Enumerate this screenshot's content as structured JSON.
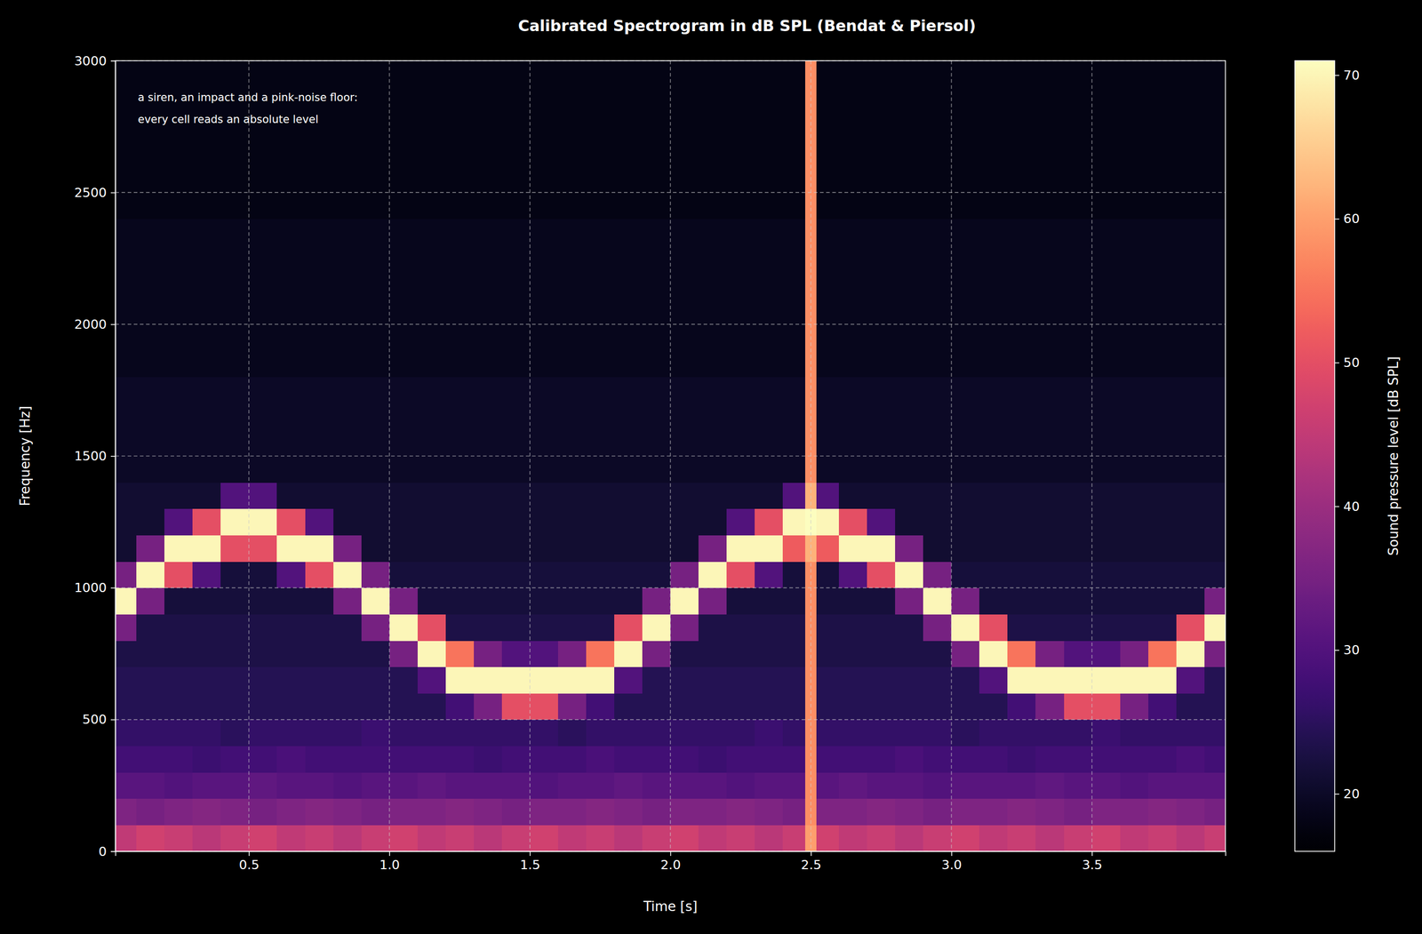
{
  "chart_data": {
    "type": "heatmap",
    "title": "Calibrated Spectrogram in dB SPL (Bendat & Piersol)",
    "annotation": [
      "a siren, an impact and a pink-noise floor:",
      "every cell reads an absolute level"
    ],
    "xlabel": "Time [s]",
    "ylabel": "Frequency [Hz]",
    "color": "magma",
    "grid": true,
    "xlim": [
      0.025,
      3.975
    ],
    "ylim": [
      0,
      3000
    ],
    "xticks": [
      0.5,
      {
        "value": 1,
        "label": "1.0"
      },
      1.5,
      {
        "value": 2,
        "label": "2.0"
      },
      2.5,
      {
        "value": 3,
        "label": "3.0"
      },
      3.5
    ],
    "yticks": [
      0,
      500,
      1000,
      1500,
      2000,
      2500,
      3000
    ],
    "colorbar": {
      "label": "Sound pressure level [dB SPL]",
      "range": [
        16,
        71
      ],
      "ticks": [
        20,
        30,
        40,
        50,
        60,
        70
      ]
    },
    "x_edges": [
      0.025,
      0.1,
      0.2,
      0.3,
      0.4,
      0.5,
      0.6,
      0.7,
      0.8,
      0.9,
      1.0,
      1.1,
      1.2,
      1.3,
      1.4,
      1.5,
      1.6,
      1.7,
      1.8,
      1.9,
      2.0,
      2.1,
      2.2,
      2.3,
      2.4,
      2.48,
      2.52,
      2.6,
      2.7,
      2.8,
      2.9,
      3.0,
      3.1,
      3.2,
      3.3,
      3.4,
      3.5,
      3.6,
      3.7,
      3.8,
      3.9,
      3.975
    ],
    "y_edges": [
      0,
      100,
      200,
      300,
      400,
      500,
      600,
      700,
      800,
      900,
      1000,
      1100,
      1200,
      1300,
      1400,
      1500,
      1600,
      1700,
      1800,
      1900,
      2000,
      2100,
      2200,
      2300,
      2400,
      2500,
      2600,
      2700,
      2800,
      2900,
      3000
    ],
    "levels": [
      [
        45,
        36,
        31,
        28,
        26,
        24,
        24,
        23,
        35,
        70,
        35,
        21,
        21,
        21,
        20,
        20,
        20,
        20,
        19,
        19,
        19,
        19,
        19,
        19,
        18,
        18,
        18,
        18,
        18,
        18
      ],
      [
        47,
        35,
        31,
        28,
        26,
        24,
        24,
        23,
        23,
        35,
        70,
        35,
        21,
        21,
        20,
        20,
        20,
        20,
        19,
        19,
        19,
        19,
        19,
        19,
        18,
        18,
        18,
        18,
        18,
        18
      ],
      [
        46,
        36,
        30,
        28,
        26,
        24,
        24,
        23,
        23,
        22,
        50,
        70,
        30,
        21,
        20,
        20,
        20,
        20,
        19,
        19,
        19,
        19,
        19,
        19,
        18,
        18,
        18,
        18,
        18,
        18
      ],
      [
        44,
        37,
        31,
        27,
        26,
        24,
        24,
        23,
        23,
        22,
        30,
        70,
        50,
        21,
        20,
        20,
        20,
        20,
        19,
        19,
        19,
        19,
        19,
        19,
        18,
        18,
        18,
        18,
        18,
        18
      ],
      [
        46,
        36,
        31,
        28,
        25,
        24,
        24,
        23,
        23,
        22,
        22,
        50,
        70,
        30,
        20,
        20,
        20,
        20,
        19,
        19,
        19,
        19,
        19,
        19,
        18,
        18,
        18,
        18,
        18,
        18
      ],
      [
        47,
        35,
        32,
        28,
        26,
        24,
        24,
        23,
        23,
        22,
        22,
        50,
        70,
        30,
        20,
        20,
        20,
        20,
        19,
        19,
        19,
        19,
        19,
        19,
        18,
        18,
        18,
        18,
        18,
        18
      ],
      [
        45,
        36,
        31,
        29,
        26,
        24,
        24,
        23,
        23,
        22,
        30,
        70,
        50,
        21,
        20,
        20,
        20,
        20,
        19,
        19,
        19,
        19,
        19,
        19,
        18,
        18,
        18,
        18,
        18,
        18
      ],
      [
        46,
        37,
        31,
        28,
        26,
        24,
        24,
        23,
        23,
        22,
        50,
        70,
        30,
        21,
        20,
        20,
        20,
        20,
        19,
        19,
        19,
        19,
        19,
        19,
        18,
        18,
        18,
        18,
        18,
        18
      ],
      [
        44,
        36,
        30,
        28,
        26,
        24,
        24,
        23,
        23,
        35,
        70,
        35,
        21,
        21,
        20,
        20,
        20,
        20,
        19,
        19,
        19,
        19,
        19,
        19,
        18,
        18,
        18,
        18,
        18,
        18
      ],
      [
        46,
        35,
        31,
        28,
        27,
        24,
        24,
        23,
        35,
        70,
        35,
        21,
        21,
        21,
        20,
        20,
        20,
        20,
        19,
        19,
        19,
        19,
        19,
        19,
        18,
        18,
        18,
        18,
        18,
        18
      ],
      [
        47,
        36,
        31,
        28,
        26,
        24,
        24,
        35,
        70,
        35,
        22,
        21,
        21,
        21,
        20,
        20,
        20,
        20,
        19,
        19,
        19,
        19,
        19,
        19,
        18,
        18,
        18,
        18,
        18,
        18
      ],
      [
        45,
        36,
        32,
        28,
        26,
        24,
        30,
        70,
        50,
        22,
        22,
        21,
        21,
        21,
        20,
        20,
        20,
        20,
        19,
        19,
        19,
        19,
        19,
        19,
        18,
        18,
        18,
        18,
        18,
        18
      ],
      [
        46,
        37,
        31,
        28,
        26,
        28,
        70,
        55,
        23,
        22,
        22,
        21,
        21,
        21,
        20,
        20,
        20,
        20,
        19,
        19,
        19,
        19,
        19,
        19,
        18,
        18,
        18,
        18,
        18,
        18
      ],
      [
        44,
        36,
        31,
        27,
        26,
        35,
        70,
        35,
        23,
        22,
        22,
        21,
        21,
        21,
        20,
        20,
        20,
        20,
        19,
        19,
        19,
        19,
        19,
        19,
        18,
        18,
        18,
        18,
        18,
        18
      ],
      [
        46,
        35,
        31,
        28,
        26,
        50,
        70,
        30,
        23,
        22,
        22,
        21,
        21,
        21,
        20,
        20,
        20,
        20,
        19,
        19,
        19,
        19,
        19,
        19,
        18,
        18,
        18,
        18,
        18,
        18
      ],
      [
        47,
        36,
        30,
        28,
        26,
        50,
        70,
        30,
        23,
        22,
        22,
        21,
        21,
        21,
        20,
        20,
        20,
        20,
        19,
        19,
        19,
        19,
        19,
        19,
        18,
        18,
        18,
        18,
        18,
        18
      ],
      [
        45,
        36,
        31,
        28,
        25,
        35,
        70,
        35,
        23,
        22,
        22,
        21,
        21,
        21,
        20,
        20,
        20,
        20,
        19,
        19,
        19,
        19,
        19,
        19,
        18,
        18,
        18,
        18,
        18,
        18
      ],
      [
        46,
        37,
        31,
        29,
        26,
        28,
        70,
        55,
        23,
        22,
        22,
        21,
        21,
        21,
        20,
        20,
        20,
        20,
        19,
        19,
        19,
        19,
        19,
        19,
        18,
        18,
        18,
        18,
        18,
        18
      ],
      [
        44,
        36,
        32,
        28,
        26,
        24,
        30,
        70,
        50,
        22,
        22,
        21,
        21,
        21,
        20,
        20,
        20,
        20,
        19,
        19,
        19,
        19,
        19,
        19,
        18,
        18,
        18,
        18,
        18,
        18
      ],
      [
        46,
        35,
        31,
        28,
        26,
        24,
        24,
        35,
        70,
        35,
        22,
        21,
        21,
        21,
        20,
        20,
        20,
        20,
        19,
        19,
        19,
        19,
        19,
        19,
        18,
        18,
        18,
        18,
        18,
        18
      ],
      [
        47,
        36,
        31,
        28,
        26,
        24,
        24,
        23,
        35,
        70,
        35,
        21,
        21,
        21,
        20,
        20,
        20,
        20,
        19,
        19,
        19,
        19,
        19,
        19,
        18,
        18,
        18,
        18,
        18,
        18
      ],
      [
        45,
        36,
        31,
        27,
        26,
        24,
        24,
        23,
        23,
        35,
        70,
        35,
        21,
        21,
        20,
        20,
        20,
        20,
        19,
        19,
        19,
        19,
        19,
        19,
        18,
        18,
        18,
        18,
        18,
        18
      ],
      [
        46,
        37,
        30,
        28,
        26,
        24,
        24,
        23,
        23,
        22,
        50,
        70,
        30,
        21,
        20,
        20,
        20,
        20,
        19,
        19,
        19,
        19,
        19,
        19,
        18,
        18,
        18,
        18,
        18,
        18
      ],
      [
        44,
        36,
        31,
        28,
        27,
        24,
        24,
        23,
        23,
        22,
        30,
        70,
        50,
        21,
        20,
        20,
        20,
        20,
        19,
        19,
        19,
        19,
        19,
        19,
        18,
        18,
        18,
        18,
        18,
        18
      ],
      [
        46,
        35,
        31,
        28,
        26,
        24,
        24,
        23,
        23,
        22,
        22,
        52,
        70,
        30,
        20,
        20,
        20,
        20,
        19,
        19,
        19,
        19,
        19,
        19,
        18,
        18,
        18,
        18,
        18,
        18
      ],
      [
        60,
        58,
        58,
        58,
        58,
        58,
        58,
        58,
        58,
        58,
        58,
        62,
        71,
        62,
        58,
        58,
        58,
        58,
        58,
        58,
        58,
        58,
        58,
        58,
        58,
        58,
        58,
        58,
        58,
        58
      ],
      [
        47,
        36,
        31,
        28,
        26,
        24,
        24,
        23,
        23,
        22,
        22,
        52,
        70,
        30,
        20,
        20,
        20,
        20,
        19,
        19,
        19,
        19,
        19,
        19,
        18,
        18,
        18,
        18,
        18,
        18
      ],
      [
        45,
        36,
        32,
        28,
        26,
        24,
        24,
        23,
        23,
        22,
        30,
        70,
        50,
        21,
        20,
        20,
        20,
        20,
        19,
        19,
        19,
        19,
        19,
        19,
        18,
        18,
        18,
        18,
        18,
        18
      ],
      [
        46,
        37,
        31,
        28,
        26,
        24,
        24,
        23,
        23,
        22,
        50,
        70,
        30,
        21,
        20,
        20,
        20,
        20,
        19,
        19,
        19,
        19,
        19,
        19,
        18,
        18,
        18,
        18,
        18,
        18
      ],
      [
        44,
        36,
        31,
        29,
        26,
        24,
        24,
        23,
        23,
        35,
        70,
        35,
        21,
        21,
        20,
        20,
        20,
        20,
        19,
        19,
        19,
        19,
        19,
        19,
        18,
        18,
        18,
        18,
        18,
        18
      ],
      [
        46,
        35,
        30,
        28,
        26,
        24,
        24,
        23,
        35,
        70,
        35,
        21,
        21,
        21,
        20,
        20,
        20,
        20,
        19,
        19,
        19,
        19,
        19,
        19,
        18,
        18,
        18,
        18,
        18,
        18
      ],
      [
        47,
        36,
        31,
        28,
        25,
        24,
        24,
        35,
        70,
        35,
        22,
        21,
        21,
        21,
        20,
        20,
        20,
        20,
        19,
        19,
        19,
        19,
        19,
        19,
        18,
        18,
        18,
        18,
        18,
        18
      ],
      [
        45,
        36,
        31,
        28,
        26,
        24,
        30,
        70,
        50,
        22,
        22,
        21,
        21,
        21,
        20,
        20,
        20,
        20,
        19,
        19,
        19,
        19,
        19,
        19,
        18,
        18,
        18,
        18,
        18,
        18
      ],
      [
        46,
        37,
        31,
        27,
        26,
        28,
        70,
        55,
        23,
        22,
        22,
        21,
        21,
        21,
        20,
        20,
        20,
        20,
        19,
        19,
        19,
        19,
        19,
        19,
        18,
        18,
        18,
        18,
        18,
        18
      ],
      [
        44,
        36,
        32,
        28,
        26,
        35,
        70,
        35,
        23,
        22,
        22,
        21,
        21,
        21,
        20,
        20,
        20,
        20,
        19,
        19,
        19,
        19,
        19,
        19,
        18,
        18,
        18,
        18,
        18,
        18
      ],
      [
        46,
        35,
        31,
        28,
        26,
        50,
        70,
        30,
        23,
        22,
        22,
        21,
        21,
        21,
        20,
        20,
        20,
        20,
        19,
        19,
        19,
        19,
        19,
        19,
        18,
        18,
        18,
        18,
        18,
        18
      ],
      [
        47,
        36,
        31,
        28,
        27,
        50,
        70,
        30,
        23,
        22,
        22,
        21,
        21,
        21,
        20,
        20,
        20,
        20,
        19,
        19,
        19,
        19,
        19,
        19,
        18,
        18,
        18,
        18,
        18,
        18
      ],
      [
        45,
        36,
        30,
        28,
        26,
        35,
        70,
        35,
        23,
        22,
        22,
        21,
        21,
        21,
        20,
        20,
        20,
        20,
        19,
        19,
        19,
        19,
        19,
        19,
        18,
        18,
        18,
        18,
        18,
        18
      ],
      [
        46,
        37,
        31,
        28,
        26,
        28,
        70,
        55,
        23,
        22,
        22,
        21,
        21,
        21,
        20,
        20,
        20,
        20,
        19,
        19,
        19,
        19,
        19,
        19,
        18,
        18,
        18,
        18,
        18,
        18
      ],
      [
        44,
        36,
        31,
        29,
        26,
        24,
        30,
        70,
        50,
        22,
        22,
        21,
        21,
        21,
        20,
        20,
        20,
        20,
        19,
        19,
        19,
        19,
        19,
        19,
        18,
        18,
        18,
        18,
        18,
        18
      ],
      [
        46,
        35,
        31,
        28,
        26,
        24,
        24,
        35,
        70,
        35,
        22,
        21,
        21,
        21,
        20,
        20,
        20,
        20,
        19,
        19,
        19,
        19,
        19,
        19,
        18,
        18,
        18,
        18,
        18,
        18
      ]
    ]
  }
}
